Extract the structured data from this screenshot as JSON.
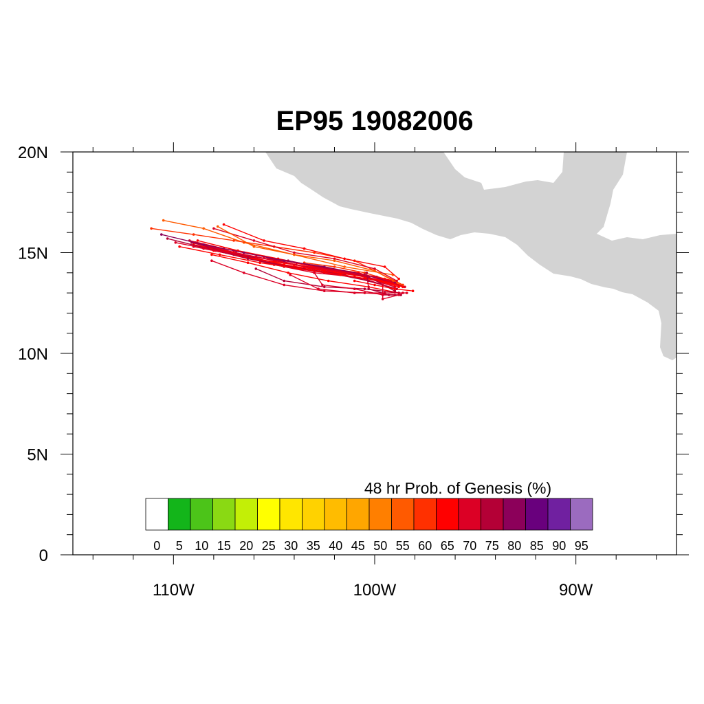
{
  "title": "EP95 19082006",
  "colorbar": {
    "title": "48 hr Prob. of Genesis (%)",
    "labels": [
      "0",
      "5",
      "10",
      "15",
      "20",
      "25",
      "30",
      "35",
      "40",
      "45",
      "50",
      "55",
      "60",
      "65",
      "70",
      "75",
      "80",
      "85",
      "90",
      "95"
    ],
    "colors": [
      "#ffffff",
      "#13b51a",
      "#4cc419",
      "#8ad913",
      "#c3ef06",
      "#ffff00",
      "#ffe600",
      "#ffd200",
      "#ffbc00",
      "#ffa600",
      "#ff7f00",
      "#ff5a00",
      "#ff3000",
      "#ff0000",
      "#dc0025",
      "#b40036",
      "#8c005a",
      "#69007d",
      "#7020a0",
      "#9b6bbf"
    ]
  },
  "axes": {
    "lon_range": [
      -115,
      -85
    ],
    "lat_range": [
      0,
      20
    ],
    "lat_ticks": [
      {
        "value": 0,
        "label": "0"
      },
      {
        "value": 5,
        "label": "5N"
      },
      {
        "value": 10,
        "label": "10N"
      },
      {
        "value": 15,
        "label": "15N"
      },
      {
        "value": 20,
        "label": "20N"
      }
    ],
    "lon_ticks": [
      {
        "value": -110,
        "label": "110W"
      },
      {
        "value": -100,
        "label": "100W"
      },
      {
        "value": -90,
        "label": "90W"
      }
    ]
  },
  "land_color": "#d3d3d3",
  "tracks": [
    {
      "color": "#ff3000",
      "points": [
        [
          -103.5,
          14.5
        ],
        [
          -102,
          14.3
        ],
        [
          -100.5,
          14.0
        ],
        [
          -99.5,
          13.7
        ],
        [
          -98.9,
          13.5
        ]
      ]
    },
    {
      "color": "#dc0025",
      "points": [
        [
          -109.0,
          15.5
        ],
        [
          -107.0,
          15.0
        ],
        [
          -105.0,
          14.6
        ],
        [
          -103.0,
          14.2
        ],
        [
          -101.0,
          14.0
        ],
        [
          -99.2,
          13.6
        ]
      ]
    },
    {
      "color": "#dc0025",
      "points": [
        [
          -109.2,
          15.6
        ],
        [
          -107.5,
          15.2
        ],
        [
          -105.5,
          14.8
        ],
        [
          -103.5,
          14.3
        ],
        [
          -101.5,
          14.0
        ],
        [
          -99.5,
          13.6
        ]
      ]
    },
    {
      "color": "#ff0000",
      "points": [
        [
          -109.0,
          15.5
        ],
        [
          -107.0,
          15.1
        ],
        [
          -105.0,
          14.7
        ],
        [
          -103.0,
          14.3
        ],
        [
          -101.0,
          14.0
        ],
        [
          -99.0,
          13.6
        ]
      ]
    },
    {
      "color": "#ff0000",
      "points": [
        [
          -109.0,
          15.4
        ],
        [
          -107.0,
          15.0
        ],
        [
          -105.0,
          14.5
        ],
        [
          -103.0,
          14.1
        ],
        [
          -101.0,
          13.9
        ],
        [
          -99.2,
          13.5
        ]
      ]
    },
    {
      "color": "#b40036",
      "points": [
        [
          -109.1,
          15.5
        ],
        [
          -107.2,
          15.0
        ],
        [
          -105.2,
          14.5
        ],
        [
          -103.5,
          14.2
        ],
        [
          -101.5,
          13.9
        ],
        [
          -99.6,
          13.4
        ]
      ]
    },
    {
      "color": "#dc0025",
      "points": [
        [
          -109.0,
          15.3
        ],
        [
          -107.0,
          14.9
        ],
        [
          -105.0,
          14.4
        ],
        [
          -103.0,
          14.0
        ],
        [
          -101.0,
          13.8
        ],
        [
          -99.0,
          13.5
        ]
      ]
    },
    {
      "color": "#ff0000",
      "points": [
        [
          -108.8,
          15.6
        ],
        [
          -106.8,
          15.1
        ],
        [
          -104.8,
          14.7
        ],
        [
          -102.8,
          14.3
        ],
        [
          -100.8,
          14.0
        ],
        [
          -98.8,
          13.4
        ]
      ]
    },
    {
      "color": "#dc0025",
      "points": [
        [
          -108.9,
          15.5
        ],
        [
          -106.9,
          15.0
        ],
        [
          -104.9,
          14.6
        ],
        [
          -102.9,
          14.2
        ],
        [
          -100.9,
          13.9
        ],
        [
          -99.0,
          13.3
        ]
      ]
    },
    {
      "color": "#ff0000",
      "points": [
        [
          -108.7,
          15.3
        ],
        [
          -106.7,
          14.9
        ],
        [
          -104.5,
          14.4
        ],
        [
          -102.5,
          14.1
        ],
        [
          -100.5,
          13.8
        ],
        [
          -98.8,
          13.3
        ]
      ]
    },
    {
      "color": "#dc0025",
      "points": [
        [
          -108.5,
          15.2
        ],
        [
          -106.5,
          14.8
        ],
        [
          -104.5,
          14.3
        ],
        [
          -102.5,
          14.0
        ],
        [
          -100.5,
          13.7
        ],
        [
          -99.0,
          13.2
        ]
      ]
    },
    {
      "color": "#ff0000",
      "points": [
        [
          -108.0,
          15.1
        ],
        [
          -106.0,
          14.7
        ],
        [
          -104.0,
          14.4
        ],
        [
          -102.0,
          14.1
        ],
        [
          -100.0,
          13.8
        ],
        [
          -98.6,
          13.3
        ]
      ]
    },
    {
      "color": "#ff5a00",
      "points": [
        [
          -110.5,
          16.6
        ],
        [
          -108.5,
          16.2
        ],
        [
          -106.5,
          15.5
        ],
        [
          -104.0,
          14.9
        ],
        [
          -101.5,
          14.3
        ],
        [
          -99.1,
          13.9
        ]
      ]
    },
    {
      "color": "#ff3000",
      "points": [
        [
          -111.1,
          16.2
        ],
        [
          -109.0,
          15.9
        ],
        [
          -107.0,
          15.6
        ],
        [
          -105.0,
          15.3
        ],
        [
          -103.0,
          15.0
        ],
        [
          -101.0,
          14.6
        ],
        [
          -98.6,
          13.4
        ]
      ]
    },
    {
      "color": "#b40036",
      "points": [
        [
          -108.3,
          15.2
        ],
        [
          -106.3,
          14.8
        ],
        [
          -104.3,
          14.6
        ],
        [
          -102.3,
          14.2
        ],
        [
          -100.3,
          13.8
        ],
        [
          -99.0,
          13.1
        ]
      ]
    },
    {
      "color": "#dc0025",
      "points": [
        [
          -108.0,
          16.2
        ],
        [
          -106.0,
          15.6
        ],
        [
          -104.0,
          15.0
        ],
        [
          -102.0,
          14.7
        ],
        [
          -100.0,
          14.2
        ],
        [
          -98.9,
          13.6
        ]
      ]
    },
    {
      "color": "#ff0000",
      "points": [
        [
          -107.5,
          16.4
        ],
        [
          -105.5,
          15.6
        ],
        [
          -103.5,
          15.2
        ],
        [
          -101.5,
          14.7
        ],
        [
          -99.5,
          14.3
        ],
        [
          -98.8,
          13.7
        ]
      ]
    },
    {
      "color": "#ff5a00",
      "points": [
        [
          -107.8,
          16.3
        ],
        [
          -106.0,
          15.3
        ],
        [
          -104.0,
          14.9
        ],
        [
          -102.0,
          14.6
        ],
        [
          -100.0,
          14.1
        ],
        [
          -98.5,
          13.3
        ]
      ]
    },
    {
      "color": "#8c005a",
      "points": [
        [
          -110.6,
          15.9
        ],
        [
          -108.5,
          15.4
        ],
        [
          -106.5,
          15.0
        ],
        [
          -104.5,
          14.6
        ],
        [
          -102.5,
          14.3
        ],
        [
          -100.5,
          13.9
        ],
        [
          -99.0,
          13.5
        ]
      ]
    },
    {
      "color": "#b40036",
      "points": [
        [
          -110.3,
          15.7
        ],
        [
          -108.3,
          15.2
        ],
        [
          -106.3,
          14.7
        ],
        [
          -104.3,
          14.3
        ],
        [
          -102.3,
          14.0
        ],
        [
          -100.3,
          13.6
        ],
        [
          -98.9,
          13.2
        ]
      ]
    },
    {
      "color": "#dc0025",
      "points": [
        [
          -109.9,
          15.5
        ],
        [
          -107.9,
          15.1
        ],
        [
          -105.9,
          14.8
        ],
        [
          -103.9,
          14.4
        ],
        [
          -101.9,
          14.1
        ],
        [
          -99.9,
          13.8
        ],
        [
          -98.5,
          13.3
        ]
      ]
    },
    {
      "color": "#ff0000",
      "points": [
        [
          -109.7,
          15.3
        ],
        [
          -107.7,
          14.9
        ],
        [
          -105.7,
          14.5
        ],
        [
          -103.7,
          14.2
        ],
        [
          -101.7,
          13.9
        ],
        [
          -99.7,
          13.6
        ],
        [
          -98.6,
          13.3
        ]
      ]
    },
    {
      "color": "#ff0000",
      "points": [
        [
          -108.1,
          14.9
        ],
        [
          -106.3,
          14.5
        ],
        [
          -104.3,
          14.0
        ],
        [
          -102.3,
          13.6
        ],
        [
          -100.3,
          13.3
        ],
        [
          -98.8,
          13.0
        ]
      ]
    },
    {
      "color": "#dc0025",
      "points": [
        [
          -108.1,
          14.6
        ],
        [
          -106.5,
          14.0
        ],
        [
          -104.5,
          13.4
        ],
        [
          -102.5,
          13.1
        ],
        [
          -100.5,
          13.0
        ],
        [
          -99.0,
          12.9
        ]
      ]
    },
    {
      "color": "#b40036",
      "points": [
        [
          -105.9,
          14.2
        ],
        [
          -104.5,
          13.6
        ],
        [
          -102.5,
          13.3
        ],
        [
          -100.5,
          13.2
        ],
        [
          -98.8,
          13.0
        ]
      ]
    },
    {
      "color": "#dc0025",
      "points": [
        [
          -104.2,
          13.9
        ],
        [
          -102.8,
          13.2
        ],
        [
          -101.0,
          13.0
        ],
        [
          -99.5,
          13.0
        ],
        [
          -98.4,
          13.0
        ]
      ]
    },
    {
      "color": "#dc0025",
      "points": [
        [
          -103.0,
          14.0
        ],
        [
          -102.6,
          13.4
        ],
        [
          -101.0,
          13.2
        ],
        [
          -99.6,
          12.9
        ],
        [
          -98.7,
          12.9
        ]
      ]
    },
    {
      "color": "#b40036",
      "points": [
        [
          -100.4,
          14.0
        ],
        [
          -100.3,
          13.2
        ],
        [
          -99.3,
          12.9
        ],
        [
          -98.7,
          12.9
        ]
      ]
    },
    {
      "color": "#dc0025",
      "points": [
        [
          -99.6,
          13.4
        ],
        [
          -99.6,
          12.7
        ],
        [
          -98.8,
          12.9
        ],
        [
          -98.6,
          13.0
        ]
      ]
    },
    {
      "color": "#ff0000",
      "points": [
        [
          -101.0,
          13.6
        ],
        [
          -100.0,
          13.4
        ],
        [
          -99.0,
          13.2
        ],
        [
          -98.1,
          13.1
        ]
      ]
    }
  ]
}
